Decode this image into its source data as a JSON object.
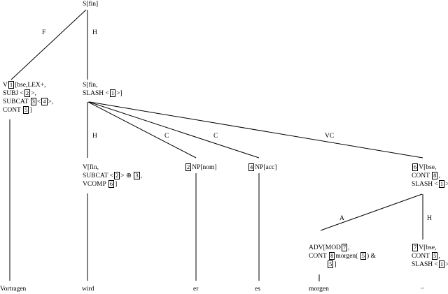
{
  "root": {
    "label": "S[fin]"
  },
  "nodes": {
    "verb_complex": {
      "lines": [
        [
          {
            "t": "V"
          },
          {
            "tag": "1"
          },
          {
            "t": "[bse,LEX+,"
          }
        ],
        [
          {
            "t": "SUBJ <"
          },
          {
            "tag": "2"
          },
          {
            "t": ">,"
          }
        ],
        [
          {
            "t": "SUBCAT "
          },
          {
            "tag": "3"
          },
          {
            "t": "<"
          },
          {
            "tag": "4"
          },
          {
            "t": ">,"
          }
        ],
        [
          {
            "t": "CONT "
          },
          {
            "tag": "5"
          },
          {
            "t": "]"
          }
        ]
      ]
    },
    "slash_s": {
      "lines": [
        [
          {
            "t": "S[fin,"
          }
        ],
        [
          {
            "t": "SLASH <"
          },
          {
            "tag": "1"
          },
          {
            "t": ">]"
          }
        ]
      ]
    },
    "fin_verb": {
      "lines": [
        [
          {
            "t": "V[fin,"
          }
        ],
        [
          {
            "t": "SUBCAT <"
          },
          {
            "tag": "2"
          },
          {
            "t": "> ⊕ "
          },
          {
            "tag": "3"
          },
          {
            "t": ","
          }
        ],
        [
          {
            "t": "VCOMP "
          },
          {
            "tag": "6"
          },
          {
            "t": "]"
          }
        ]
      ]
    },
    "np_nom": {
      "lines": [
        [
          {
            "tag": "2"
          },
          {
            "t": "NP[nom]"
          }
        ]
      ]
    },
    "np_acc": {
      "lines": [
        [
          {
            "tag": "4"
          },
          {
            "t": "NP[acc]"
          }
        ]
      ]
    },
    "vc": {
      "lines": [
        [
          {
            "tag": "6"
          },
          {
            "t": "V[bse,"
          }
        ],
        [
          {
            "t": "CONT "
          },
          {
            "tag": "8"
          },
          {
            "t": ","
          }
        ],
        [
          {
            "t": "SLASH <"
          },
          {
            "tag": "1"
          },
          {
            "t": ">]"
          }
        ]
      ]
    },
    "adv": {
      "lines": [
        [
          {
            "t": "ADV[MOD"
          },
          {
            "tag": "7"
          },
          {
            "t": ","
          }
        ],
        [
          {
            "t": "CONT "
          },
          {
            "tag": "8"
          },
          {
            "t": "morgen( "
          },
          {
            "tag": "5"
          },
          {
            "t": ") &"
          }
        ],
        [
          {
            "t": "           "
          },
          {
            "tag": "5"
          },
          {
            "t": "]"
          }
        ]
      ]
    },
    "trace_v": {
      "lines": [
        [
          {
            "tag": "7"
          },
          {
            "t": "V[bse,"
          }
        ],
        [
          {
            "t": "CONT "
          },
          {
            "tag": "5"
          },
          {
            "t": ","
          }
        ],
        [
          {
            "t": "SLASH <"
          },
          {
            "tag": "1"
          },
          {
            "t": ">]"
          }
        ]
      ]
    }
  },
  "edges": {
    "root_left": "F",
    "root_down": "H",
    "s_fin": "H",
    "s_nom": "C",
    "s_acc": "C",
    "s_vc": "VC",
    "vc_adv": "A",
    "vc_trace": "H"
  },
  "leaves": {
    "w1": "Vortragen",
    "w2": "wird",
    "w3": "er",
    "w4": "es",
    "w5": "morgen",
    "w6": "_"
  }
}
